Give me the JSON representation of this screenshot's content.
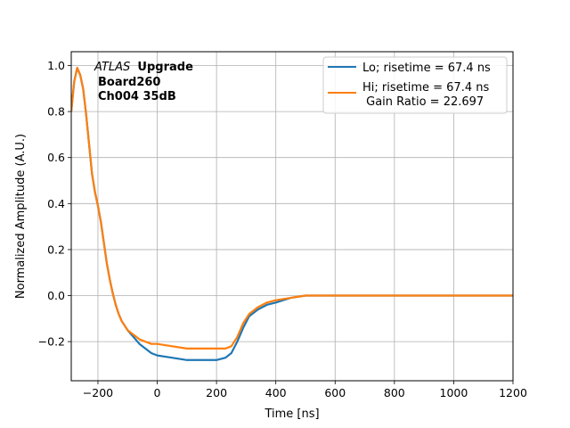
{
  "chart_data": {
    "type": "line",
    "xlabel": "Time [ns]",
    "ylabel": "Normalized Amplitude (A.U.)",
    "xlim": [
      -290,
      1200
    ],
    "ylim": [
      -0.37,
      1.06
    ],
    "xticks": [
      -200,
      0,
      200,
      400,
      600,
      800,
      1000,
      1200
    ],
    "yticks": [
      -0.2,
      0.0,
      0.2,
      0.4,
      0.6,
      0.8,
      1.0
    ],
    "xtick_labels": [
      "−200",
      "0",
      "200",
      "400",
      "600",
      "800",
      "1000",
      "1200"
    ],
    "ytick_labels": [
      "−0.2",
      "0.0",
      "0.2",
      "0.4",
      "0.6",
      "0.8",
      "1.0"
    ],
    "grid": true,
    "legend_position": "top-right",
    "annotation": {
      "line1_italic": "ATLAS",
      "line1_bold": "Upgrade",
      "line2": "Board260",
      "line3": "Ch004 35dB"
    },
    "series": [
      {
        "name": "Lo; risetime = 67.4 ns",
        "color": "#1f77b4",
        "x": [
          -290,
          -280,
          -270,
          -260,
          -250,
          -240,
          -230,
          -220,
          -210,
          -200,
          -190,
          -180,
          -170,
          -160,
          -150,
          -140,
          -130,
          -120,
          -110,
          -100,
          -80,
          -60,
          -40,
          -20,
          0,
          50,
          100,
          150,
          200,
          230,
          250,
          270,
          290,
          310,
          340,
          370,
          400,
          450,
          500,
          600,
          700,
          800,
          900,
          1000,
          1100,
          1200
        ],
        "y": [
          0.8,
          0.93,
          0.99,
          0.96,
          0.9,
          0.79,
          0.66,
          0.53,
          0.45,
          0.39,
          0.32,
          0.23,
          0.14,
          0.07,
          0.01,
          -0.04,
          -0.08,
          -0.11,
          -0.13,
          -0.15,
          -0.18,
          -0.21,
          -0.23,
          -0.25,
          -0.26,
          -0.27,
          -0.28,
          -0.28,
          -0.28,
          -0.27,
          -0.25,
          -0.2,
          -0.14,
          -0.09,
          -0.06,
          -0.04,
          -0.03,
          -0.01,
          0.0,
          0.0,
          0.0,
          0.0,
          0.0,
          0.0,
          0.0,
          0.0
        ]
      },
      {
        "name": "Hi; risetime = 67.4 ns\n Gain Ratio = 22.697",
        "color": "#ff7f0e",
        "x": [
          -290,
          -280,
          -270,
          -260,
          -250,
          -240,
          -230,
          -220,
          -210,
          -200,
          -190,
          -180,
          -170,
          -160,
          -150,
          -140,
          -130,
          -120,
          -110,
          -100,
          -80,
          -60,
          -40,
          -20,
          0,
          50,
          100,
          150,
          200,
          230,
          250,
          270,
          290,
          310,
          340,
          370,
          400,
          450,
          500,
          600,
          700,
          800,
          900,
          1000,
          1100,
          1200
        ],
        "y": [
          0.8,
          0.93,
          0.99,
          0.96,
          0.9,
          0.79,
          0.66,
          0.53,
          0.45,
          0.39,
          0.32,
          0.23,
          0.14,
          0.07,
          0.01,
          -0.04,
          -0.08,
          -0.11,
          -0.13,
          -0.15,
          -0.17,
          -0.19,
          -0.2,
          -0.21,
          -0.21,
          -0.22,
          -0.23,
          -0.23,
          -0.23,
          -0.23,
          -0.22,
          -0.18,
          -0.12,
          -0.08,
          -0.05,
          -0.03,
          -0.02,
          -0.01,
          0.0,
          0.0,
          0.0,
          0.0,
          0.0,
          0.0,
          0.0,
          0.0
        ]
      }
    ]
  }
}
